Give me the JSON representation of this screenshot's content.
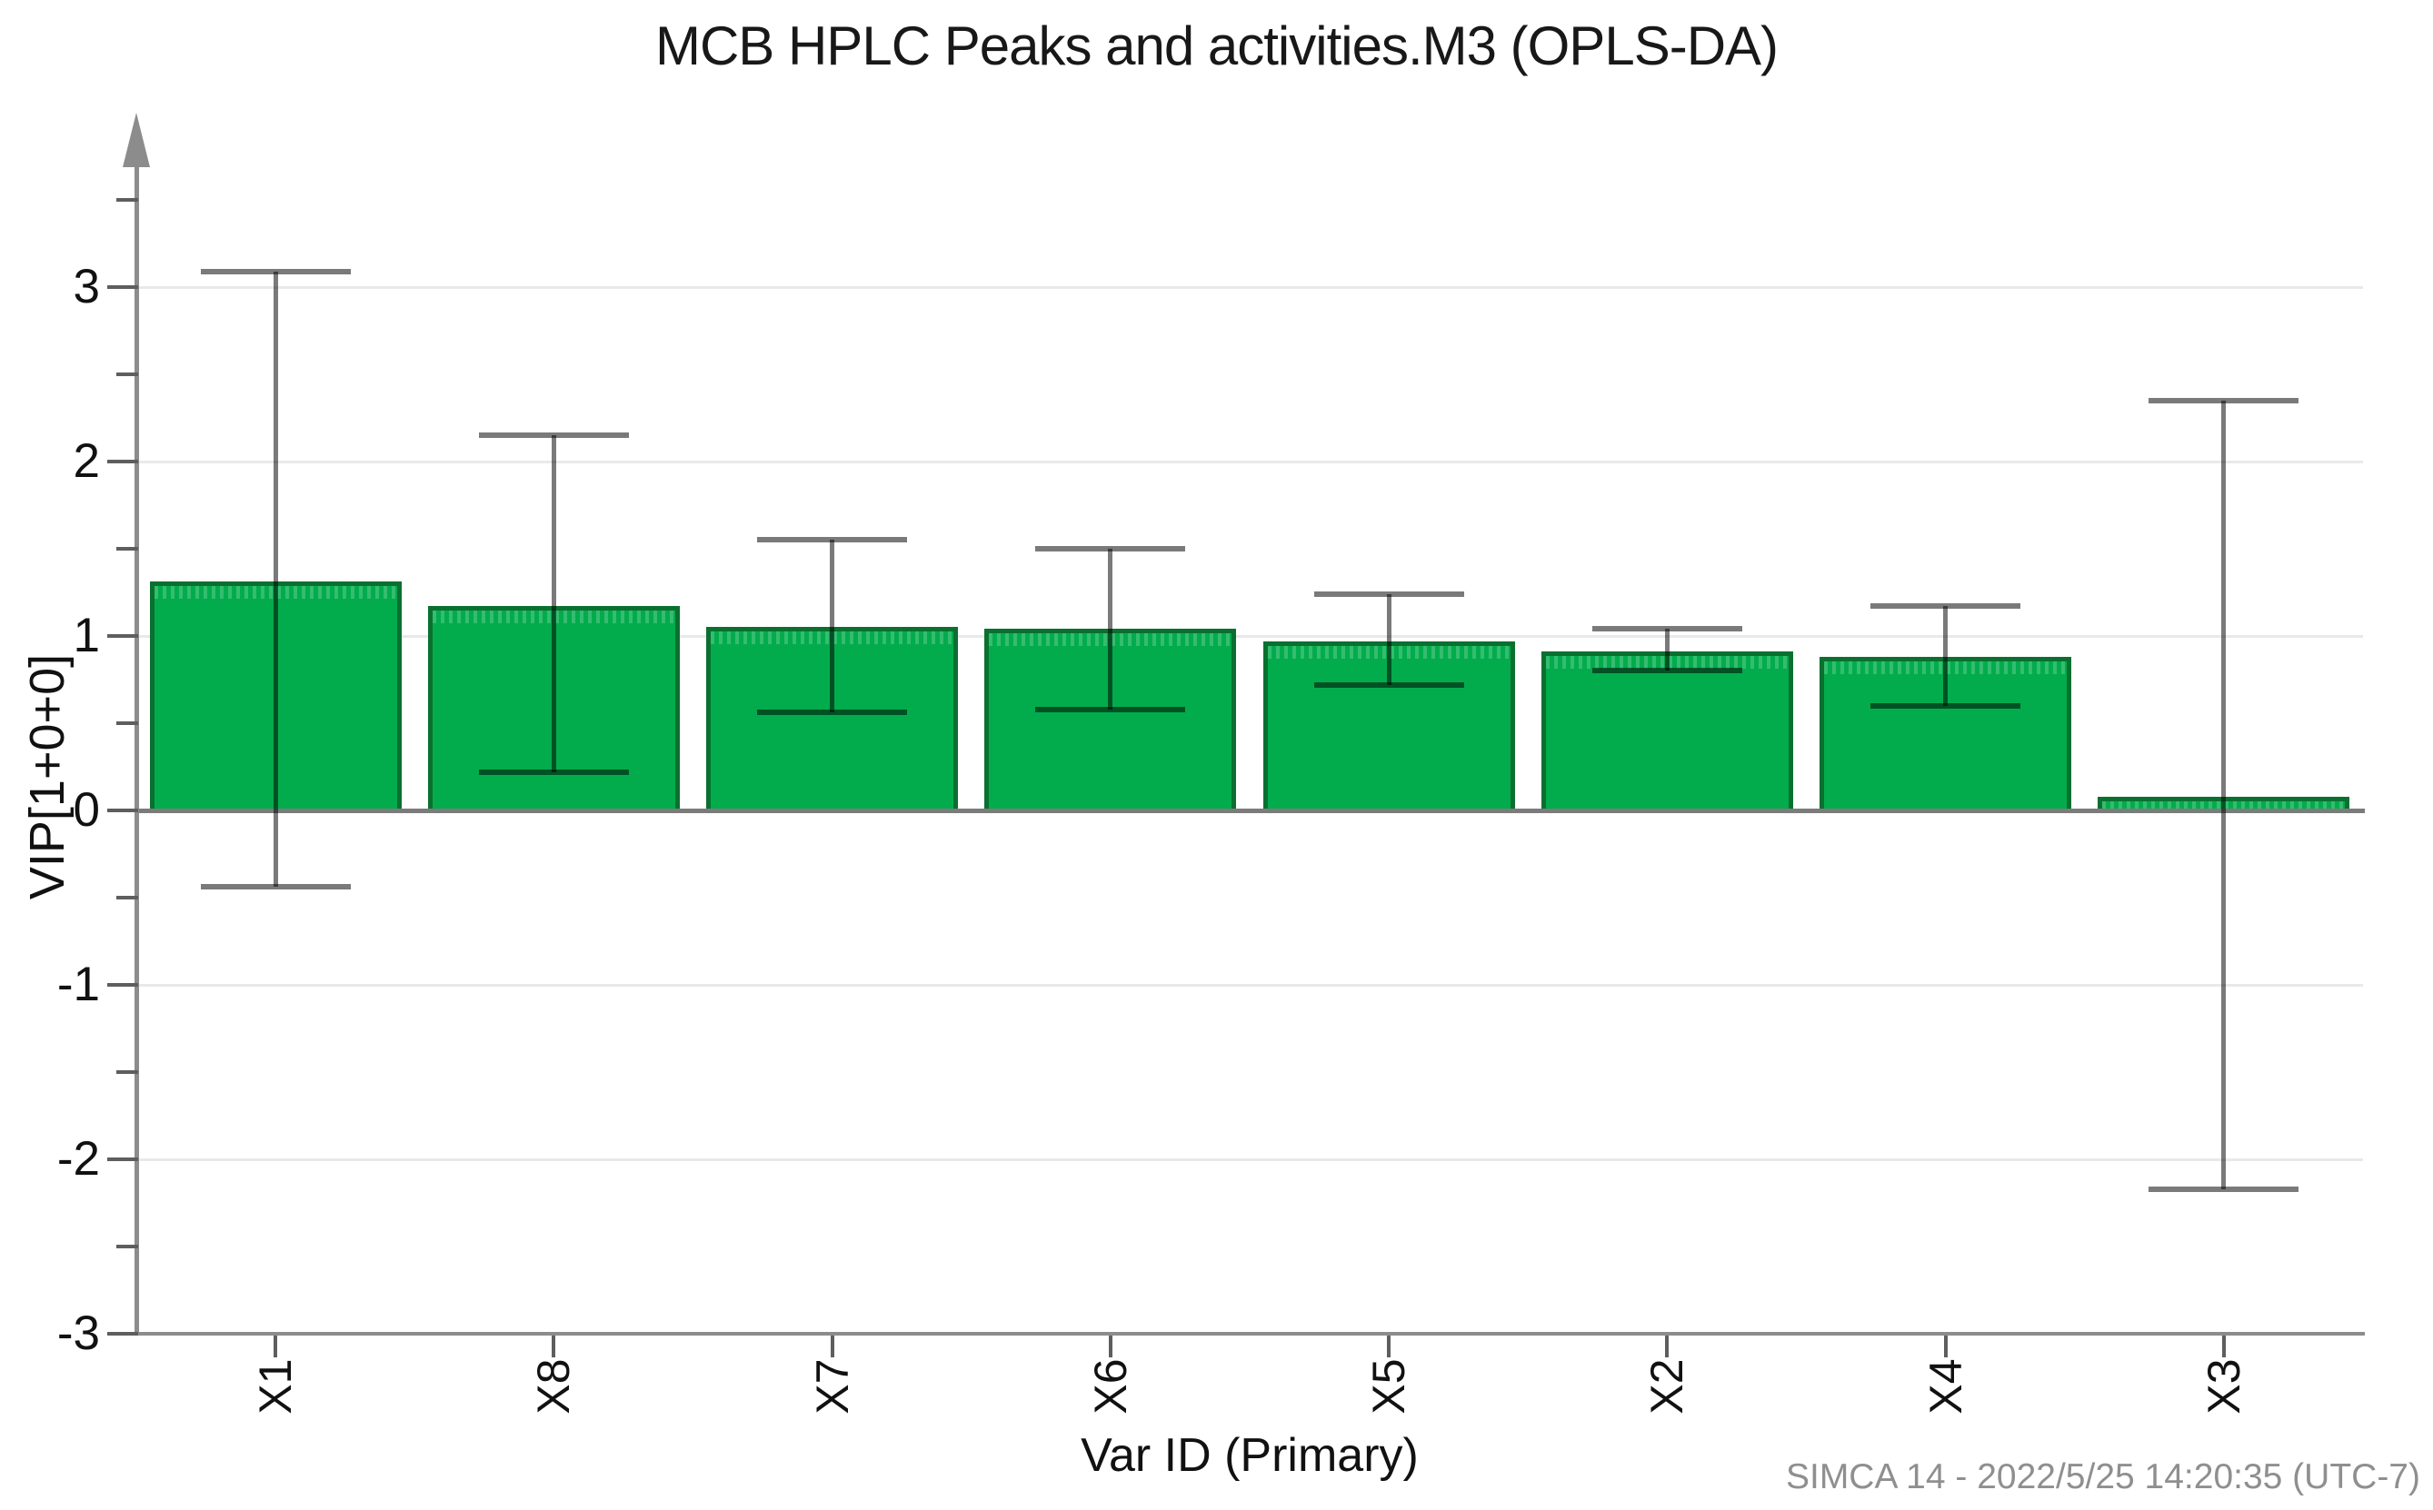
{
  "chart_data": {
    "type": "bar",
    "title": "MCB HPLC Peaks and activities.M3 (OPLS-DA)",
    "xlabel": "Var ID (Primary)",
    "ylabel": "VIP[1+0+0]",
    "categories": [
      "X1",
      "X8",
      "X7",
      "X6",
      "X5",
      "X2",
      "X4",
      "X3"
    ],
    "values": [
      1.31,
      1.17,
      1.05,
      1.04,
      0.97,
      0.91,
      0.88,
      0.08
    ],
    "error_low": [
      -0.44,
      0.22,
      0.56,
      0.58,
      0.72,
      0.8,
      0.6,
      -2.17
    ],
    "error_high": [
      3.09,
      2.15,
      1.55,
      1.5,
      1.24,
      1.04,
      1.17,
      2.35
    ],
    "ylim": [
      -3,
      3.75
    ],
    "yticks": [
      -3,
      -2,
      -1,
      0,
      1,
      2,
      3
    ],
    "ytick_labels": [
      "-3",
      "-2",
      "-1",
      "0",
      "1",
      "2",
      "3"
    ],
    "y_minor_ticks": [
      -2.5,
      -1.5,
      -0.5,
      0.5,
      1.5,
      2.5,
      3.5
    ],
    "grid": "horizontal-major",
    "legend": "none",
    "error_bar_style": "caps-both-ends",
    "colors": {
      "bar_fill": "#02AC4C",
      "bar_border": "#0A7030",
      "error_bar": "rgba(0,0,0,0.52)",
      "gridline": "#E9E9E9",
      "axis": "#8C8C8C",
      "zero_line": "#7B7B7B",
      "tick": "#5E5E5E",
      "text": "#181818",
      "footer_text": "#8F8F8F"
    },
    "footer": "SIMCA 14 - 2022/5/25 14:20:35 (UTC-7)"
  }
}
